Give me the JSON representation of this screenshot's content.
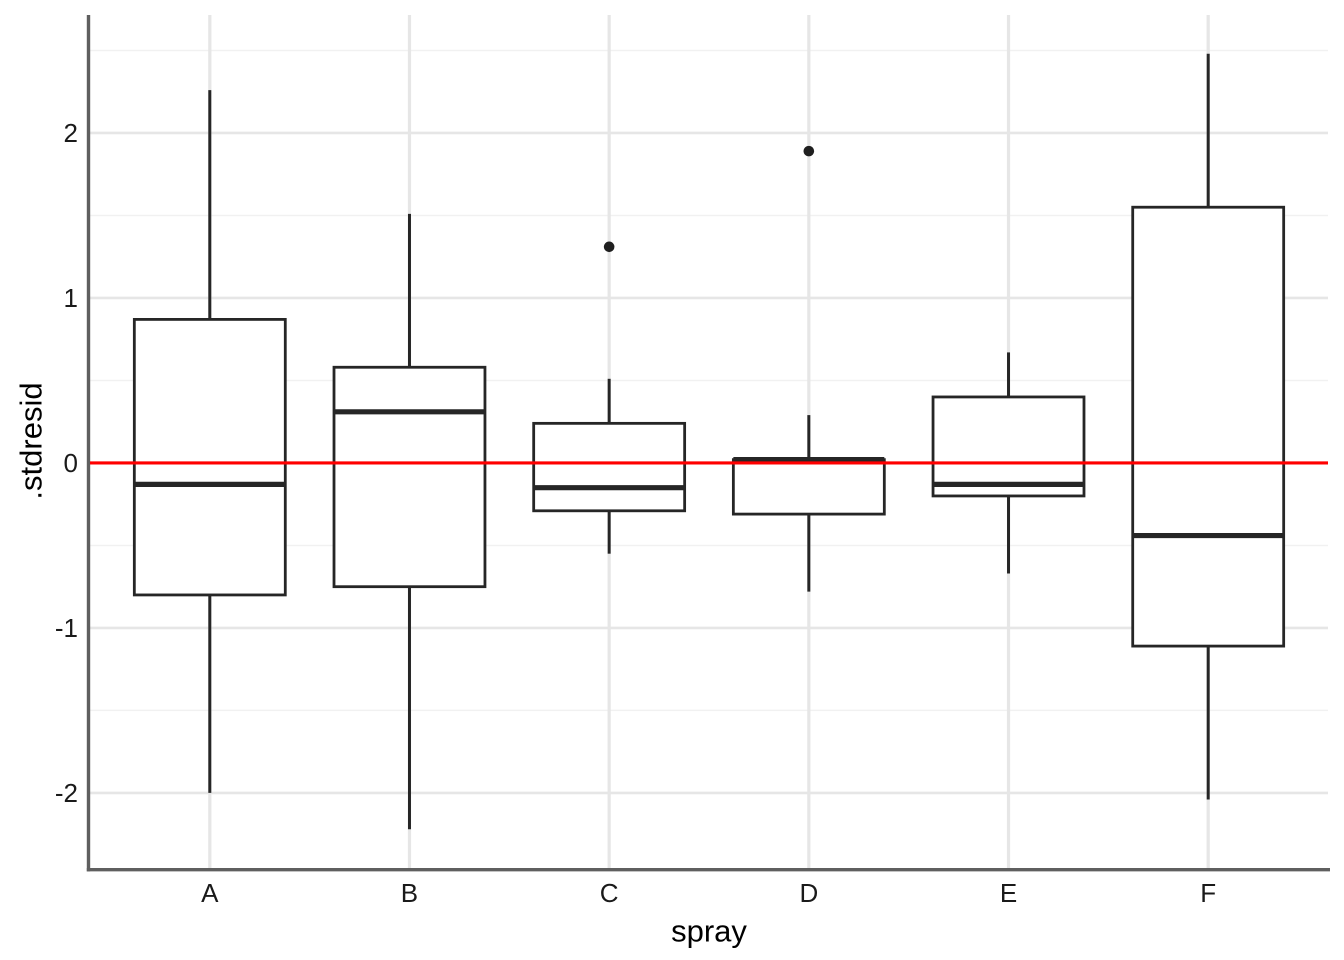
{
  "figure": {
    "background": "#ffffff"
  },
  "chart_data": {
    "type": "boxplot",
    "title": "",
    "xlabel": "spray",
    "ylabel": ".stdresid",
    "categories": [
      "A",
      "B",
      "C",
      "D",
      "E",
      "F"
    ],
    "boxes": [
      {
        "category": "A",
        "whisker_low": -2.0,
        "q1": -0.8,
        "median": -0.13,
        "q3": 0.87,
        "whisker_high": 2.26,
        "outliers": []
      },
      {
        "category": "B",
        "whisker_low": -2.22,
        "q1": -0.75,
        "median": 0.31,
        "q3": 0.58,
        "whisker_high": 1.51,
        "outliers": []
      },
      {
        "category": "C",
        "whisker_low": -0.55,
        "q1": -0.29,
        "median": -0.15,
        "q3": 0.24,
        "whisker_high": 0.51,
        "outliers": [
          1.31
        ]
      },
      {
        "category": "D",
        "whisker_low": -0.78,
        "q1": -0.31,
        "median": 0.02,
        "q3": 0.02,
        "whisker_high": 0.29,
        "outliers": [
          1.89
        ]
      },
      {
        "category": "E",
        "whisker_low": -0.67,
        "q1": -0.2,
        "median": -0.13,
        "q3": 0.4,
        "whisker_high": 0.67,
        "outliers": []
      },
      {
        "category": "F",
        "whisker_low": -2.04,
        "q1": -1.11,
        "median": -0.44,
        "q3": 1.55,
        "whisker_high": 2.48,
        "outliers": []
      }
    ],
    "ylim": [
      -2.455,
      2.715
    ],
    "ytick_values": [
      -2,
      -1,
      0,
      1,
      2
    ],
    "ytick_labels": [
      "-2",
      "-1",
      "0",
      "1",
      "2"
    ],
    "y_minor_gridlines": [
      -1.5,
      -0.5,
      0.5,
      1.5,
      2.5
    ],
    "reference_line": {
      "y": 0,
      "color": "#ff0000"
    },
    "grid": "major+minor",
    "legend": "none",
    "styles": {
      "box_border": "#262626",
      "box_fill": "#ffffff",
      "median_color": "#262626",
      "whisker_color": "#262626",
      "outlier_color": "#1f1f1f",
      "gridline_major": "#e6e6e6",
      "gridline_minor": "#f1f1f1",
      "axis_line": "#5f5f5f",
      "tick_label_color": "#1a1a1a",
      "axis_title_color": "#000000",
      "panel_background": "#ffffff"
    }
  }
}
